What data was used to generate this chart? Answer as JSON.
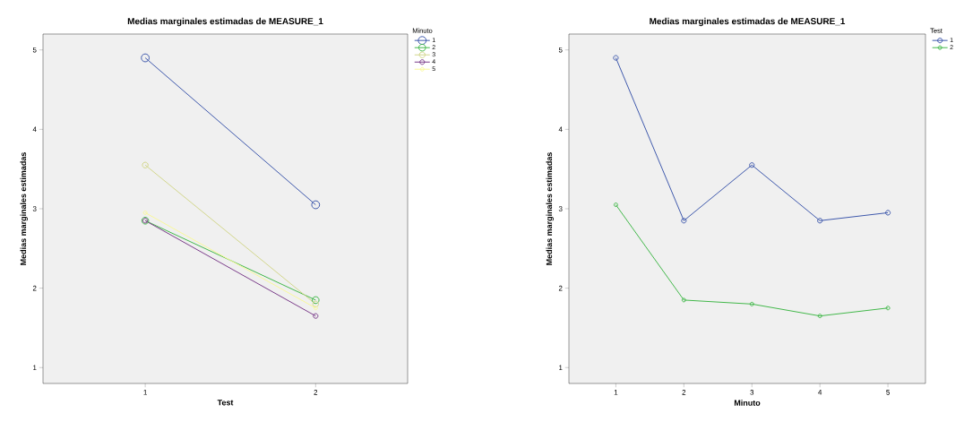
{
  "chart_data": [
    {
      "type": "line",
      "title": "Medias marginales estimadas de MEASURE_1",
      "xlabel": "Test",
      "ylabel": "Medias marginales estimadas",
      "legend_title": "Minuto",
      "categories": [
        "1",
        "2"
      ],
      "series": [
        {
          "name": "1",
          "color": "#3e58ac",
          "values": [
            4.9,
            3.05
          ]
        },
        {
          "name": "2",
          "color": "#42b84a",
          "values": [
            2.85,
            1.85
          ]
        },
        {
          "name": "3",
          "color": "#d2d68c",
          "values": [
            3.55,
            1.8
          ]
        },
        {
          "name": "4",
          "color": "#7a3d8a",
          "values": [
            2.85,
            1.65
          ]
        },
        {
          "name": "5",
          "color": "#f8f89a",
          "values": [
            2.95,
            1.75
          ]
        }
      ],
      "ylim": [
        0.8,
        5.2
      ],
      "yticks": [
        1,
        2,
        3,
        4,
        5
      ],
      "marker": "circle",
      "legend": "right",
      "grid": false
    },
    {
      "type": "line",
      "title": "Medias marginales estimadas de MEASURE_1",
      "xlabel": "Minuto",
      "ylabel": "Medias marginales estimadas",
      "legend_title": "Test",
      "categories": [
        "1",
        "2",
        "3",
        "4",
        "5"
      ],
      "series": [
        {
          "name": "1",
          "color": "#3e58ac",
          "values": [
            4.9,
            2.85,
            3.55,
            2.85,
            2.95
          ]
        },
        {
          "name": "2",
          "color": "#42b84a",
          "values": [
            3.05,
            1.85,
            1.8,
            1.65,
            1.75
          ]
        }
      ],
      "ylim": [
        0.8,
        5.2
      ],
      "yticks": [
        1,
        2,
        3,
        4,
        5
      ],
      "marker": "circle",
      "legend": "right",
      "grid": false
    }
  ]
}
